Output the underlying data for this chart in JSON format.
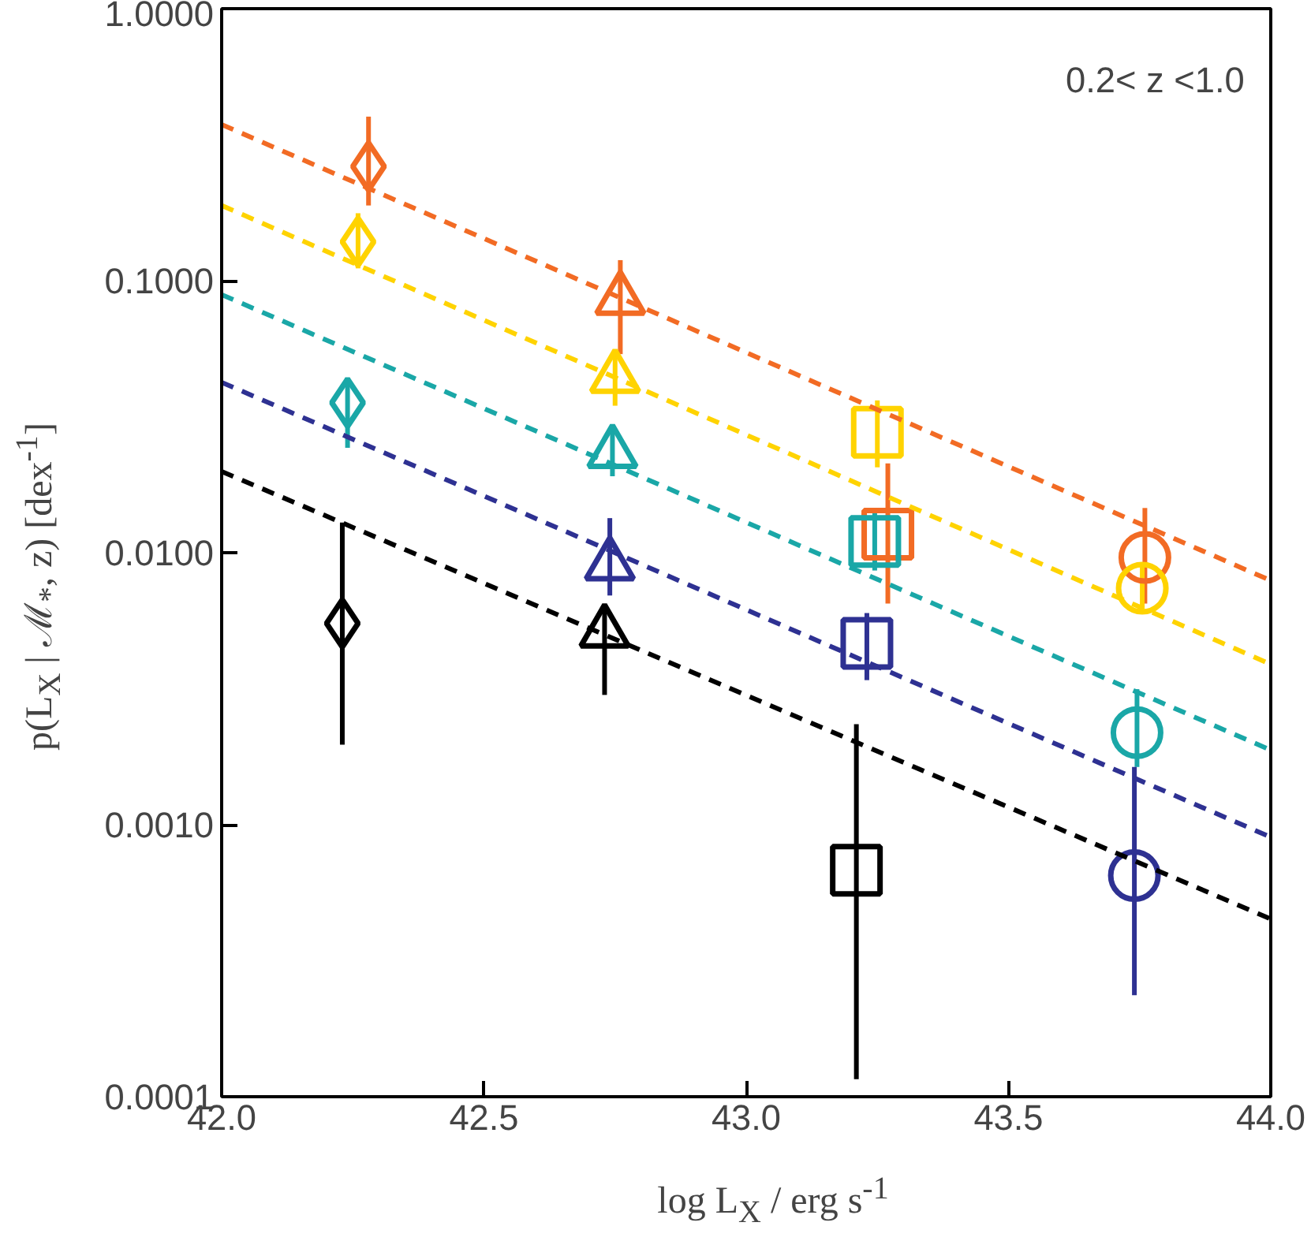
{
  "chart_data": {
    "type": "scatter",
    "xlabel": "log L$_{X}$ / erg s$^{-1}$",
    "ylabel": "p(L$_{X}$ | ℳ$_{*}$, z) [dex$^{-1}$]",
    "annotations": [
      "0.2< z <1.0"
    ],
    "log": "y",
    "grid": false,
    "xlim": [
      42.0,
      44.0
    ],
    "xticks": [
      {
        "value": 42.0,
        "label": "42.0"
      },
      {
        "value": 42.5,
        "label": "42.5"
      },
      {
        "value": 43.0,
        "label": "43.0"
      },
      {
        "value": 43.5,
        "label": "43.5"
      },
      {
        "value": 44.0,
        "label": "44.0"
      }
    ],
    "ylim": [
      0.0001,
      1.0
    ],
    "yticks": [
      {
        "value": 0.0001,
        "label": "0.0001"
      },
      {
        "value": 0.001,
        "label": "0.0010"
      },
      {
        "value": 0.01,
        "label": "0.0100"
      },
      {
        "value": 0.1,
        "label": "0.1000"
      },
      {
        "value": 1.0,
        "label": "1.0000"
      }
    ],
    "series": [
      {
        "marker": "diamond",
        "x": [
          42.28,
          42.26,
          42.24,
          42.23
        ],
        "values": [
          0.263,
          0.139,
          0.0356,
          0.0055
        ],
        "errors": [
          [
            0.189,
            0.401
          ],
          [
            0.111,
            0.177
          ],
          [
            0.0243,
            0.0441
          ],
          [
            0.00197,
            0.0129
          ]
        ],
        "colors": [
          "#f26b24",
          "#ffd300",
          "#1aa7a7",
          "#000000"
        ]
      },
      {
        "marker": "triangle",
        "x": [
          42.76,
          42.75,
          42.745,
          42.74,
          42.73
        ],
        "values": [
          0.0853,
          0.044,
          0.0233,
          0.009,
          0.0051
        ],
        "errors": [
          [
            0.0537,
            0.119
          ],
          [
            0.0347,
            0.0537
          ],
          [
            0.0191,
            0.0288
          ],
          [
            0.00696,
            0.0134
          ],
          [
            0.003,
            0.0065
          ]
        ],
        "colors": [
          "#f26b24",
          "#ffd300",
          "#1aa7a7",
          "#2e3192",
          "#000000"
        ]
      },
      {
        "marker": "square",
        "x": [
          43.25,
          43.27,
          43.245,
          43.23,
          43.21
        ],
        "values": [
          0.0277,
          0.0117,
          0.011,
          0.00464,
          0.00068
        ],
        "errors": [
          [
            0.0206,
            0.0363
          ],
          [
            0.0065,
            0.0213
          ],
          [
            0.0086,
            0.0146
          ],
          [
            0.0034,
            0.006
          ],
          [
            0.000116,
            0.00234
          ]
        ],
        "colors": [
          "#ffd300",
          "#f26b24",
          "#1aa7a7",
          "#2e3192",
          "#000000"
        ]
      },
      {
        "marker": "circle",
        "x": [
          43.76,
          43.755,
          43.745,
          43.74
        ],
        "values": [
          0.0096,
          0.0074,
          0.00218,
          0.00065
        ],
        "errors": [
          [
            0.0065,
            0.0146
          ],
          [
            0.0062,
            0.009
          ],
          [
            0.00163,
            0.00315
          ],
          [
            0.000236,
            0.00163
          ]
        ],
        "colors": [
          "#f26b24",
          "#ffd300",
          "#1aa7a7",
          "#2e3192"
        ]
      },
      {
        "type": "line",
        "line_style": "dashed",
        "color": "#f26b24",
        "x": [
          42.0,
          44.0
        ],
        "values": [
          0.375,
          0.0079
        ]
      },
      {
        "type": "line",
        "line_style": "dashed",
        "color": "#ffd300",
        "x": [
          42.0,
          44.0
        ],
        "values": [
          0.189,
          0.00389
        ]
      },
      {
        "type": "line",
        "line_style": "dashed",
        "color": "#1aa7a7",
        "x": [
          42.0,
          44.0
        ],
        "values": [
          0.0889,
          0.00188
        ]
      },
      {
        "type": "line",
        "line_style": "dashed",
        "color": "#2e3192",
        "x": [
          42.0,
          44.0
        ],
        "values": [
          0.0423,
          0.0009
        ]
      },
      {
        "type": "line",
        "line_style": "dashed",
        "color": "#000000",
        "x": [
          42.0,
          44.0
        ],
        "values": [
          0.0199,
          0.00045
        ]
      }
    ]
  }
}
